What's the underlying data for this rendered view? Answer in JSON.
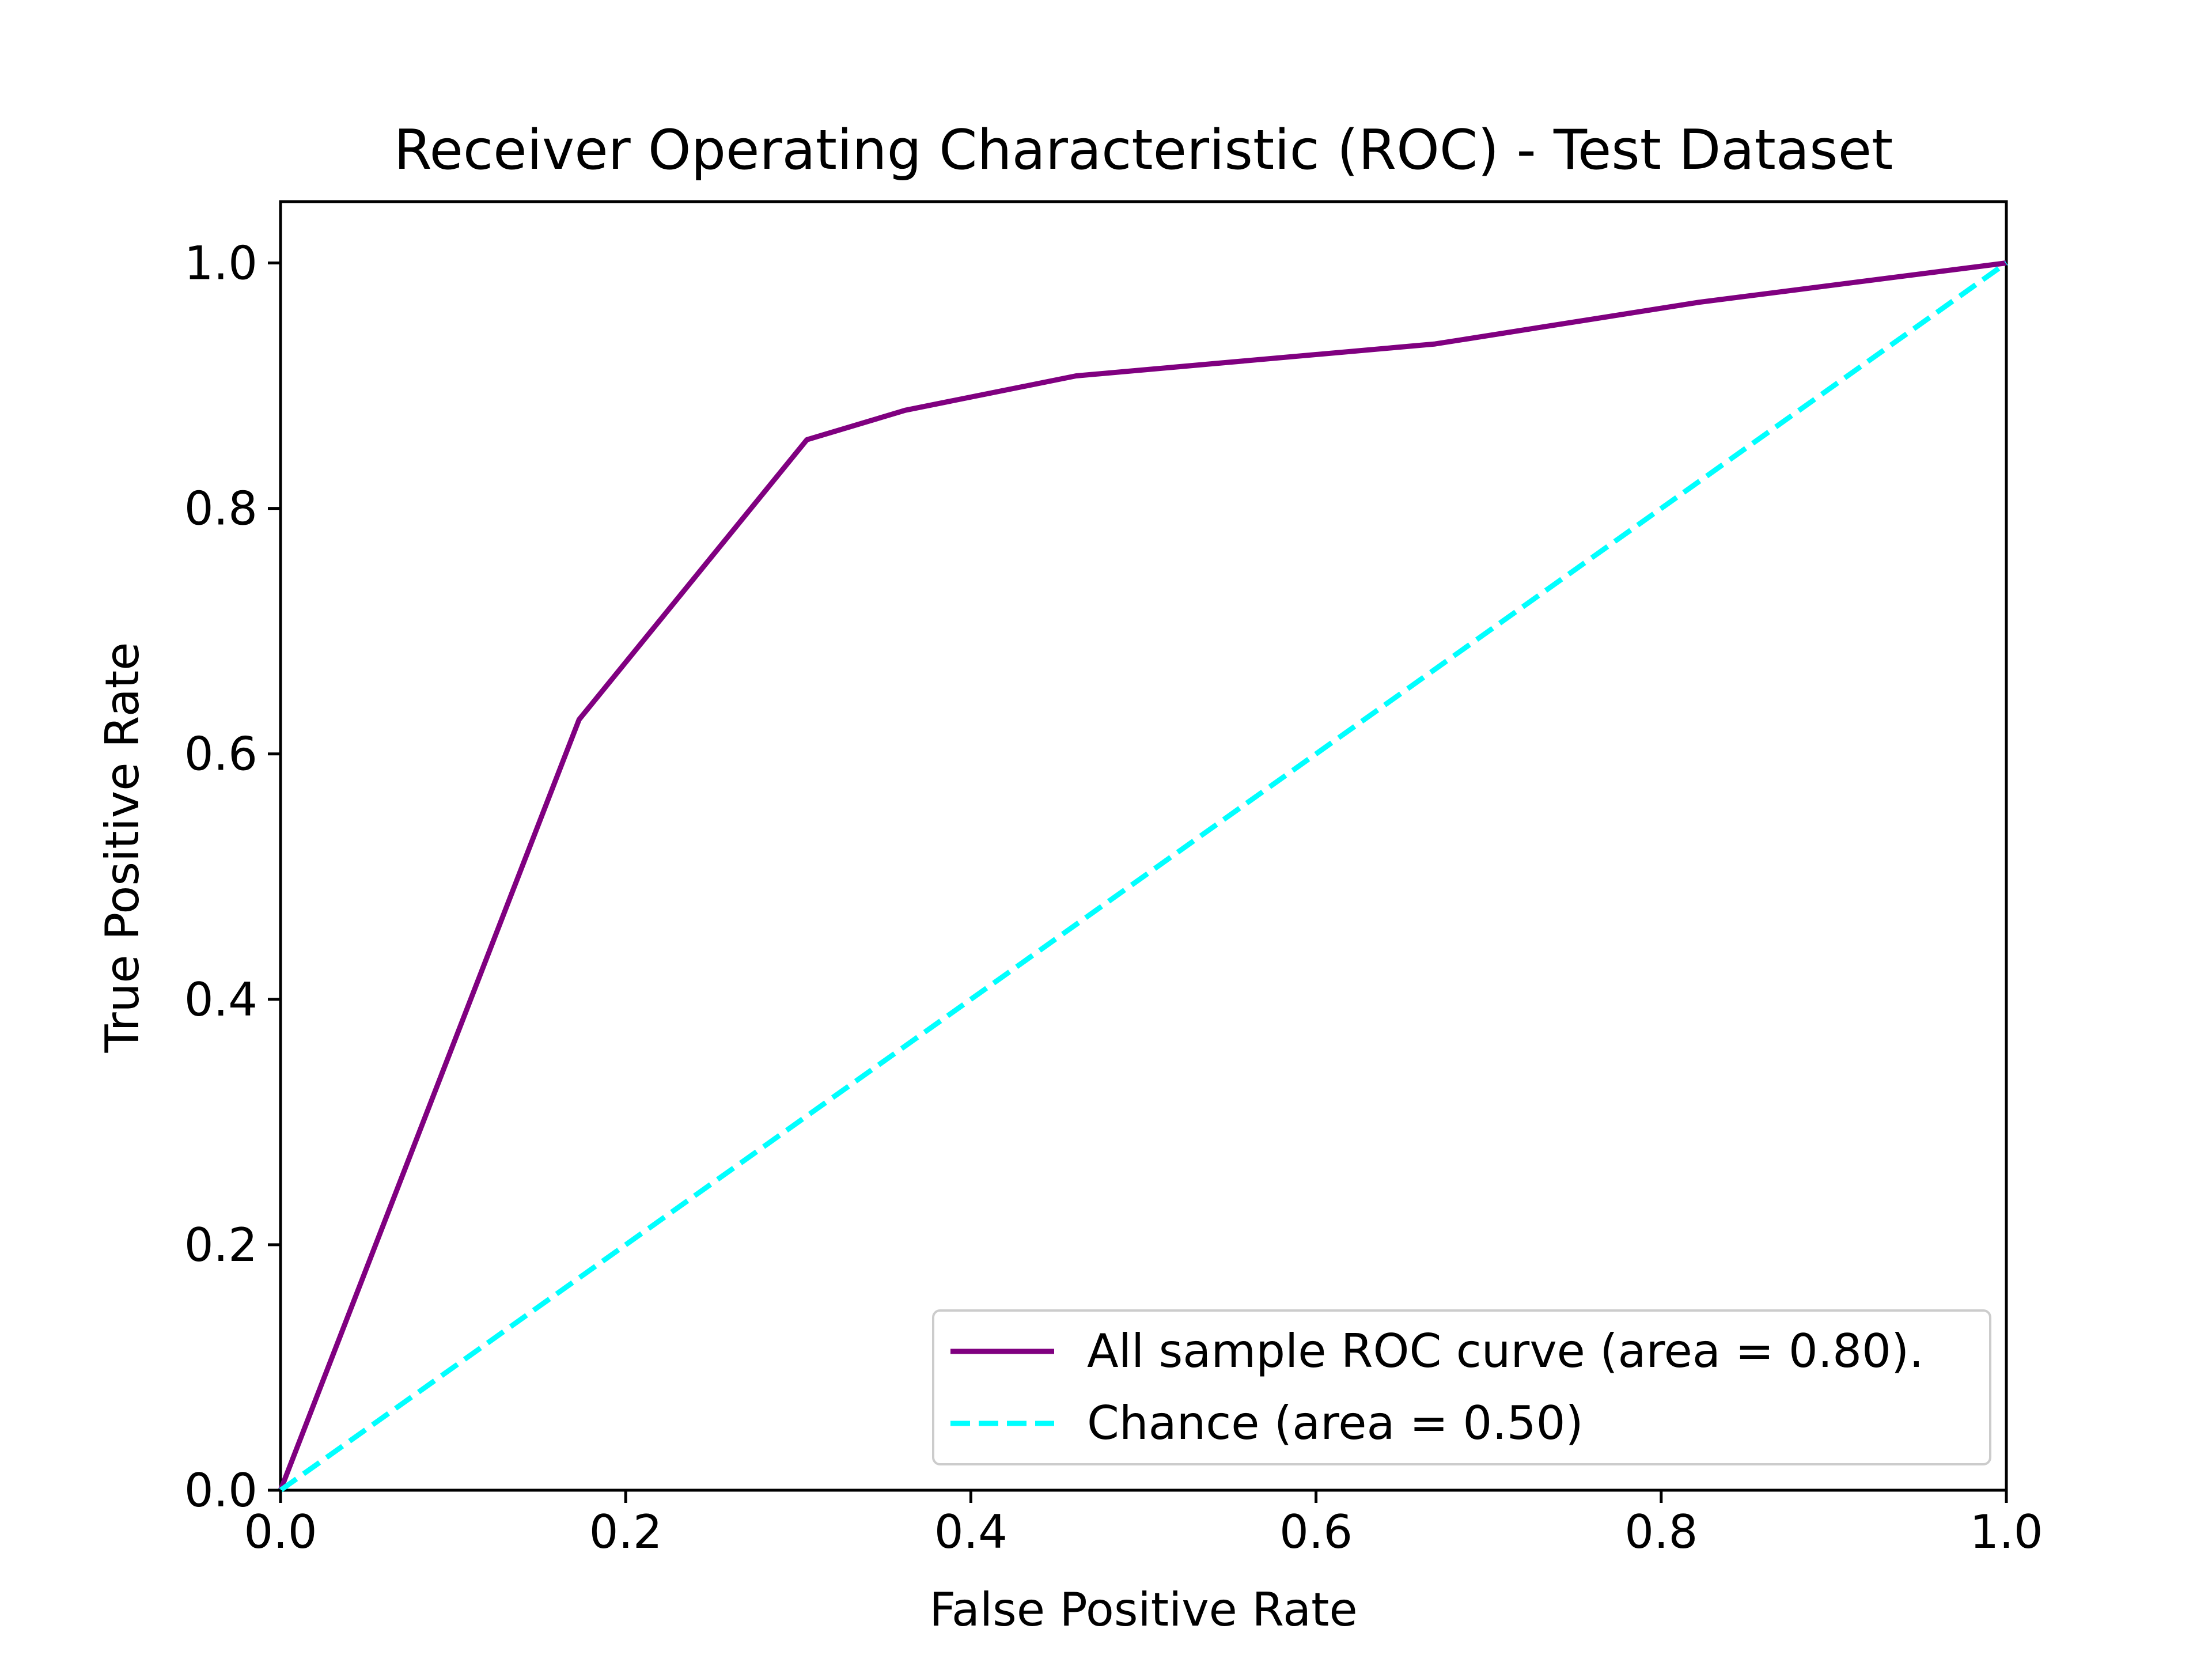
{
  "chart_data": {
    "type": "line",
    "title": "Receiver Operating Characteristic (ROC) - Test Dataset",
    "xlabel": "False Positive Rate",
    "ylabel": "True Positive Rate",
    "xlim": [
      0.0,
      1.0
    ],
    "ylim": [
      0.0,
      1.05
    ],
    "xticks": [
      "0.0",
      "0.2",
      "0.4",
      "0.6",
      "0.8",
      "1.0"
    ],
    "yticks": [
      "0.0",
      "0.2",
      "0.4",
      "0.6",
      "0.8",
      "1.0"
    ],
    "grid": false,
    "legend_position": "lower-right",
    "series": [
      {
        "name": "All sample ROC curve (area = 0.80).",
        "color": "#800080",
        "style": "solid",
        "x": [
          0.0,
          0.173,
          0.305,
          0.362,
          0.461,
          0.669,
          0.822,
          1.0
        ],
        "y": [
          0.0,
          0.628,
          0.856,
          0.88,
          0.908,
          0.934,
          0.968,
          1.0
        ]
      },
      {
        "name": "Chance (area = 0.50)",
        "color": "#00FFFF",
        "style": "dashed",
        "x": [
          0.0,
          1.0
        ],
        "y": [
          0.0,
          1.0
        ]
      }
    ]
  }
}
